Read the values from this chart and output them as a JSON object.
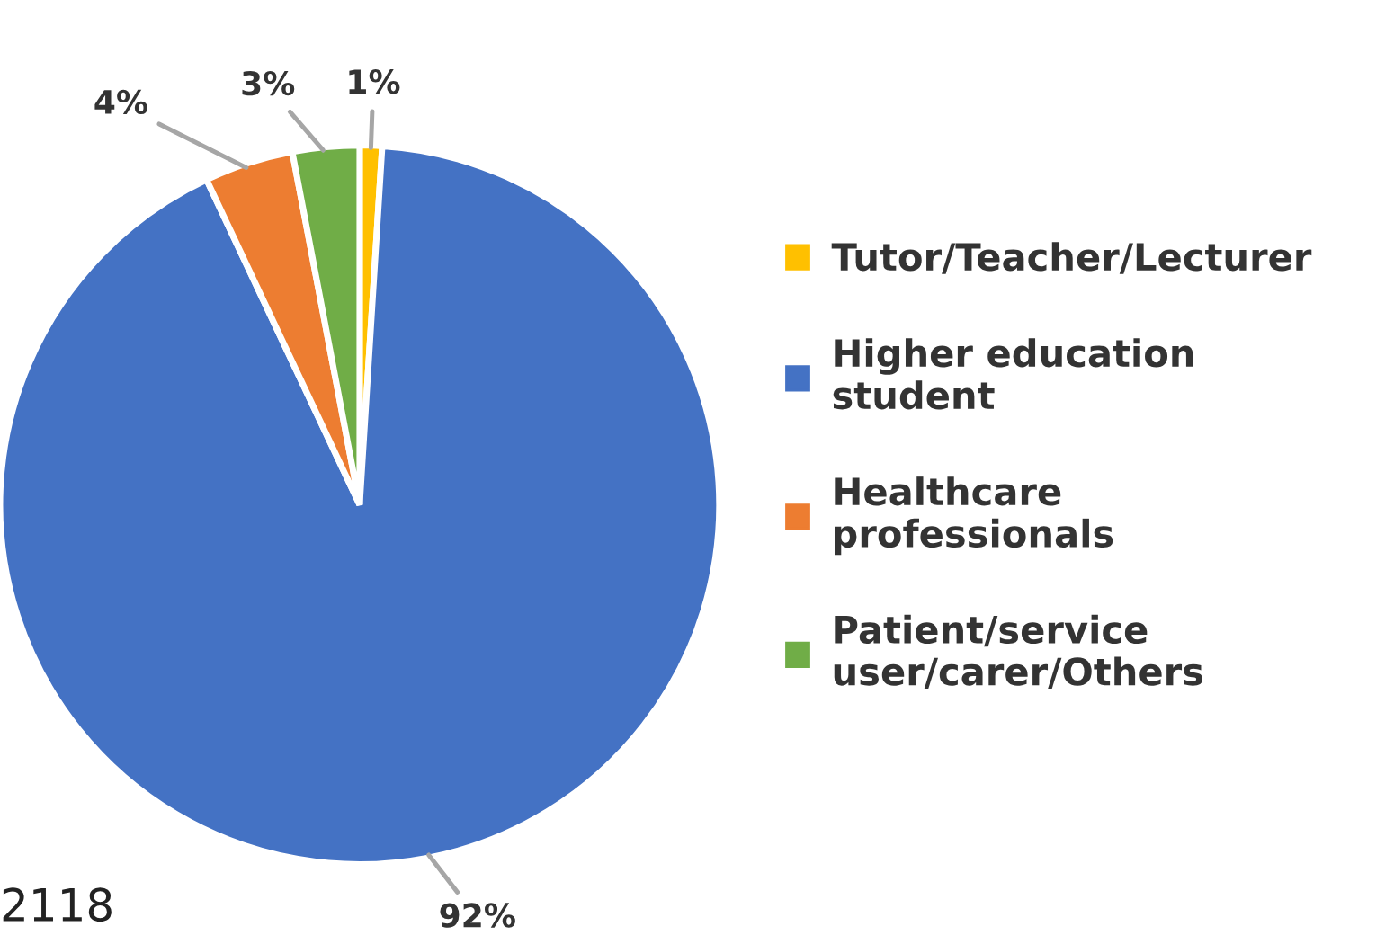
{
  "chart_data": {
    "type": "pie",
    "categories": [
      "Tutor/Teacher/Lecturer",
      "Higher education student",
      "Healthcare professionals",
      "Patient/service user/carer/Others"
    ],
    "values": [
      1,
      92,
      4,
      3
    ],
    "value_labels": [
      "1%",
      "92%",
      "4%",
      "3%"
    ],
    "colors": [
      "#ffc000",
      "#4472c4",
      "#ed7d31",
      "#70ad47"
    ],
    "legend": "right",
    "annotations": [
      "2118"
    ]
  }
}
